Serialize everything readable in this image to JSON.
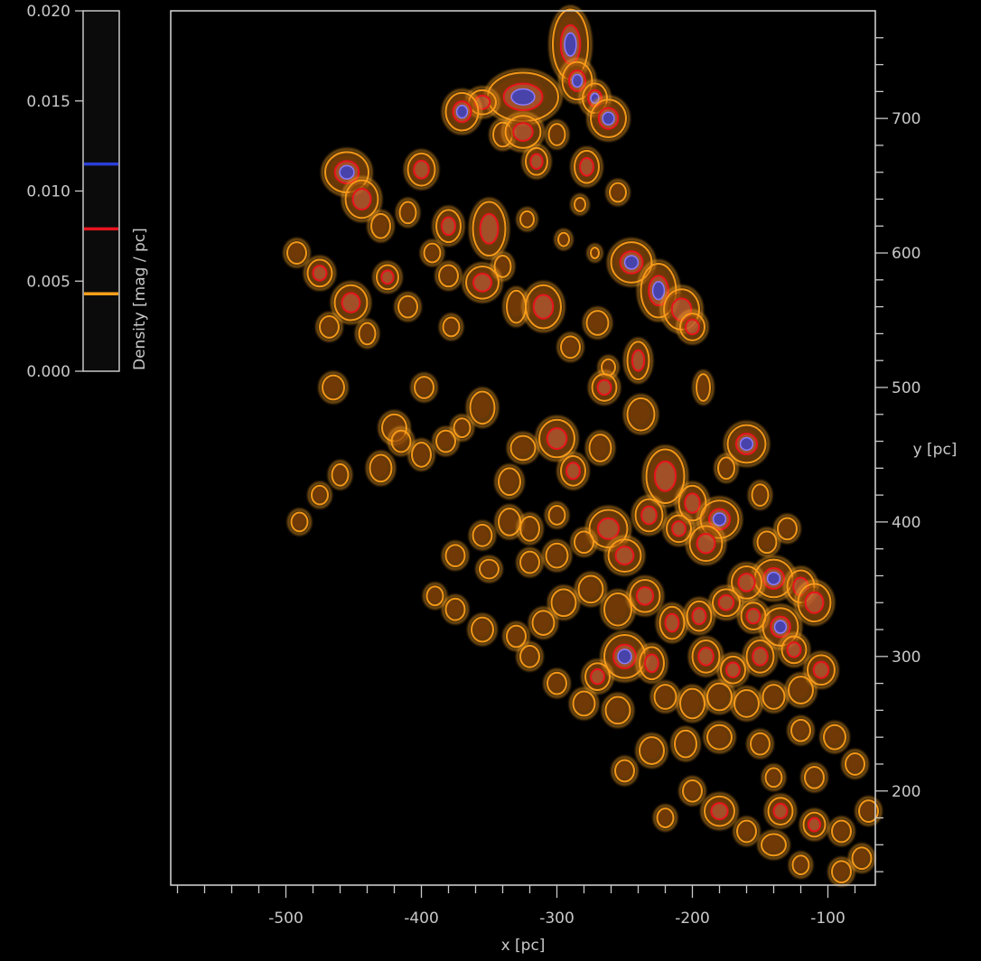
{
  "chart_data": {
    "type": "heatmap",
    "title": "",
    "xlabel": "x [pc]",
    "ylabel": "y [pc]",
    "xlim": [
      -585,
      -65
    ],
    "ylim": [
      130,
      780
    ],
    "x_ticks": [
      -500,
      -400,
      -300,
      -200,
      -100
    ],
    "y_ticks": [
      200,
      300,
      400,
      500,
      600,
      700
    ],
    "colorbar": {
      "label": "Density [mag / pc]",
      "range": [
        0.0,
        0.02
      ],
      "ticks": [
        "0.000",
        "0.005",
        "0.010",
        "0.015",
        "0.020"
      ],
      "contour_levels": [
        {
          "value": 0.0043,
          "color": "#ff9f1a"
        },
        {
          "value": 0.0079,
          "color": "#e8141e"
        },
        {
          "value": 0.0115,
          "color": "#2a3fd6"
        }
      ]
    },
    "clouds": [
      [
        -290,
        755,
        13,
        26,
        0.016
      ],
      [
        -285,
        728,
        11,
        14,
        0.014
      ],
      [
        -272,
        715,
        9,
        11,
        0.013
      ],
      [
        -262,
        700,
        13,
        14,
        0.012
      ],
      [
        -325,
        716,
        26,
        18,
        0.013
      ],
      [
        -355,
        712,
        10,
        9,
        0.008
      ],
      [
        -370,
        705,
        12,
        14,
        0.012
      ],
      [
        -340,
        688,
        7,
        9,
        0.007
      ],
      [
        -315,
        668,
        8,
        10,
        0.008
      ],
      [
        -325,
        690,
        13,
        12,
        0.009
      ],
      [
        -300,
        688,
        6,
        8,
        0.006
      ],
      [
        -455,
        660,
        16,
        15,
        0.013
      ],
      [
        -444,
        640,
        12,
        14,
        0.01
      ],
      [
        -430,
        620,
        7,
        9,
        0.006
      ],
      [
        -400,
        662,
        10,
        12,
        0.011
      ],
      [
        -410,
        630,
        6,
        8,
        0.006
      ],
      [
        -380,
        620,
        9,
        12,
        0.009
      ],
      [
        -350,
        618,
        12,
        20,
        0.01
      ],
      [
        -340,
        590,
        6,
        8,
        0.006
      ],
      [
        -322,
        625,
        5,
        6,
        0.005
      ],
      [
        -278,
        664,
        9,
        12,
        0.01
      ],
      [
        -255,
        645,
        6,
        7,
        0.006
      ],
      [
        -283,
        636,
        4,
        5,
        0.005
      ],
      [
        -492,
        600,
        7,
        8,
        0.006
      ],
      [
        -475,
        585,
        9,
        10,
        0.008
      ],
      [
        -452,
        563,
        12,
        13,
        0.01
      ],
      [
        -440,
        540,
        6,
        8,
        0.006
      ],
      [
        -425,
        582,
        8,
        9,
        0.008
      ],
      [
        -410,
        560,
        7,
        8,
        0.006
      ],
      [
        -392,
        600,
        6,
        7,
        0.006
      ],
      [
        -380,
        583,
        7,
        8,
        0.007
      ],
      [
        -355,
        578,
        12,
        12,
        0.008
      ],
      [
        -378,
        545,
        6,
        7,
        0.006
      ],
      [
        -398,
        500,
        7,
        8,
        0.006
      ],
      [
        -330,
        560,
        7,
        12,
        0.006
      ],
      [
        -310,
        560,
        13,
        16,
        0.008
      ],
      [
        -295,
        610,
        4,
        5,
        0.005
      ],
      [
        -272,
        600,
        3,
        4,
        0.004
      ],
      [
        -245,
        593,
        15,
        15,
        0.013
      ],
      [
        -225,
        572,
        13,
        20,
        0.012
      ],
      [
        -208,
        558,
        13,
        15,
        0.011
      ],
      [
        -200,
        545,
        9,
        10,
        0.01
      ],
      [
        -270,
        548,
        8,
        9,
        0.007
      ],
      [
        -290,
        530,
        7,
        8,
        0.006
      ],
      [
        -262,
        515,
        5,
        6,
        0.005
      ],
      [
        -240,
        520,
        8,
        14,
        0.008
      ],
      [
        -265,
        500,
        9,
        10,
        0.008
      ],
      [
        -238,
        480,
        10,
        12,
        0.007
      ],
      [
        -192,
        500,
        5,
        10,
        0.006
      ],
      [
        -468,
        545,
        7,
        8,
        0.006
      ],
      [
        -465,
        500,
        8,
        9,
        0.006
      ],
      [
        -420,
        470,
        9,
        10,
        0.006
      ],
      [
        -382,
        460,
        7,
        8,
        0.006
      ],
      [
        -355,
        485,
        9,
        12,
        0.007
      ],
      [
        -325,
        455,
        9,
        9,
        0.007
      ],
      [
        -300,
        462,
        13,
        14,
        0.011
      ],
      [
        -288,
        438,
        9,
        11,
        0.008
      ],
      [
        -268,
        455,
        8,
        10,
        0.007
      ],
      [
        -335,
        430,
        8,
        10,
        0.006
      ],
      [
        -400,
        450,
        7,
        9,
        0.006
      ],
      [
        -430,
        440,
        8,
        10,
        0.006
      ],
      [
        -460,
        435,
        6,
        8,
        0.005
      ],
      [
        -475,
        420,
        6,
        7,
        0.005
      ],
      [
        -490,
        400,
        6,
        7,
        0.005
      ],
      [
        -415,
        460,
        7,
        8,
        0.006
      ],
      [
        -370,
        470,
        6,
        7,
        0.005
      ],
      [
        -160,
        458,
        14,
        14,
        0.013
      ],
      [
        -175,
        440,
        6,
        8,
        0.006
      ],
      [
        -150,
        420,
        6,
        8,
        0.006
      ],
      [
        -220,
        434,
        14,
        20,
        0.011
      ],
      [
        -200,
        414,
        10,
        13,
        0.009
      ],
      [
        -180,
        402,
        14,
        14,
        0.012
      ],
      [
        -190,
        384,
        12,
        13,
        0.01
      ],
      [
        -210,
        395,
        9,
        10,
        0.008
      ],
      [
        -232,
        405,
        10,
        12,
        0.008
      ],
      [
        -262,
        395,
        14,
        14,
        0.011
      ],
      [
        -250,
        375,
        12,
        12,
        0.009
      ],
      [
        -280,
        385,
        7,
        8,
        0.007
      ],
      [
        -300,
        375,
        8,
        9,
        0.007
      ],
      [
        -320,
        370,
        7,
        8,
        0.006
      ],
      [
        -335,
        400,
        8,
        10,
        0.007
      ],
      [
        -355,
        390,
        7,
        8,
        0.006
      ],
      [
        -375,
        375,
        7,
        8,
        0.006
      ],
      [
        -350,
        365,
        7,
        7,
        0.005
      ],
      [
        -320,
        395,
        7,
        9,
        0.006
      ],
      [
        -300,
        405,
        6,
        7,
        0.006
      ],
      [
        -145,
        385,
        7,
        8,
        0.006
      ],
      [
        -130,
        395,
        7,
        8,
        0.006
      ],
      [
        -140,
        358,
        14,
        14,
        0.012
      ],
      [
        -160,
        355,
        11,
        12,
        0.01
      ],
      [
        -120,
        352,
        10,
        12,
        0.009
      ],
      [
        -110,
        340,
        12,
        14,
        0.01
      ],
      [
        -135,
        322,
        13,
        14,
        0.012
      ],
      [
        -155,
        330,
        9,
        10,
        0.008
      ],
      [
        -175,
        340,
        10,
        10,
        0.008
      ],
      [
        -195,
        330,
        9,
        11,
        0.008
      ],
      [
        -215,
        325,
        9,
        12,
        0.008
      ],
      [
        -235,
        345,
        11,
        12,
        0.008
      ],
      [
        -255,
        335,
        10,
        12,
        0.007
      ],
      [
        -275,
        350,
        9,
        10,
        0.007
      ],
      [
        -295,
        340,
        9,
        10,
        0.007
      ],
      [
        -310,
        325,
        8,
        9,
        0.007
      ],
      [
        -330,
        315,
        7,
        8,
        0.006
      ],
      [
        -355,
        320,
        8,
        9,
        0.006
      ],
      [
        -375,
        335,
        7,
        8,
        0.005
      ],
      [
        -390,
        345,
        6,
        7,
        0.005
      ],
      [
        -250,
        300,
        15,
        16,
        0.013
      ],
      [
        -230,
        295,
        9,
        12,
        0.009
      ],
      [
        -270,
        285,
        9,
        10,
        0.008
      ],
      [
        -190,
        300,
        10,
        12,
        0.009
      ],
      [
        -170,
        290,
        9,
        10,
        0.008
      ],
      [
        -150,
        300,
        10,
        12,
        0.008
      ],
      [
        -125,
        305,
        9,
        10,
        0.008
      ],
      [
        -105,
        290,
        10,
        11,
        0.009
      ],
      [
        -120,
        275,
        9,
        10,
        0.007
      ],
      [
        -140,
        270,
        8,
        9,
        0.007
      ],
      [
        -160,
        265,
        9,
        10,
        0.007
      ],
      [
        -180,
        270,
        9,
        10,
        0.007
      ],
      [
        -200,
        265,
        9,
        11,
        0.007
      ],
      [
        -220,
        270,
        8,
        9,
        0.007
      ],
      [
        -255,
        260,
        9,
        10,
        0.007
      ],
      [
        -280,
        265,
        8,
        9,
        0.006
      ],
      [
        -300,
        280,
        7,
        8,
        0.006
      ],
      [
        -320,
        300,
        7,
        8,
        0.006
      ],
      [
        -180,
        240,
        9,
        9,
        0.006
      ],
      [
        -205,
        235,
        8,
        10,
        0.007
      ],
      [
        -230,
        230,
        9,
        10,
        0.007
      ],
      [
        -150,
        235,
        7,
        8,
        0.006
      ],
      [
        -120,
        245,
        7,
        8,
        0.006
      ],
      [
        -95,
        240,
        8,
        9,
        0.007
      ],
      [
        -80,
        220,
        7,
        8,
        0.006
      ],
      [
        -110,
        210,
        7,
        8,
        0.006
      ],
      [
        -140,
        210,
        6,
        7,
        0.006
      ],
      [
        -180,
        185,
        11,
        11,
        0.011
      ],
      [
        -160,
        170,
        7,
        8,
        0.006
      ],
      [
        -135,
        185,
        9,
        10,
        0.008
      ],
      [
        -110,
        175,
        8,
        9,
        0.008
      ],
      [
        -90,
        170,
        7,
        8,
        0.007
      ],
      [
        -75,
        150,
        7,
        8,
        0.007
      ],
      [
        -90,
        140,
        7,
        8,
        0.007
      ],
      [
        -140,
        160,
        9,
        8,
        0.007
      ],
      [
        -200,
        200,
        7,
        8,
        0.006
      ],
      [
        -250,
        215,
        7,
        8,
        0.006
      ],
      [
        -70,
        185,
        7,
        8,
        0.006
      ],
      [
        -220,
        180,
        6,
        7,
        0.005
      ],
      [
        -120,
        145,
        6,
        7,
        0.006
      ]
    ]
  }
}
